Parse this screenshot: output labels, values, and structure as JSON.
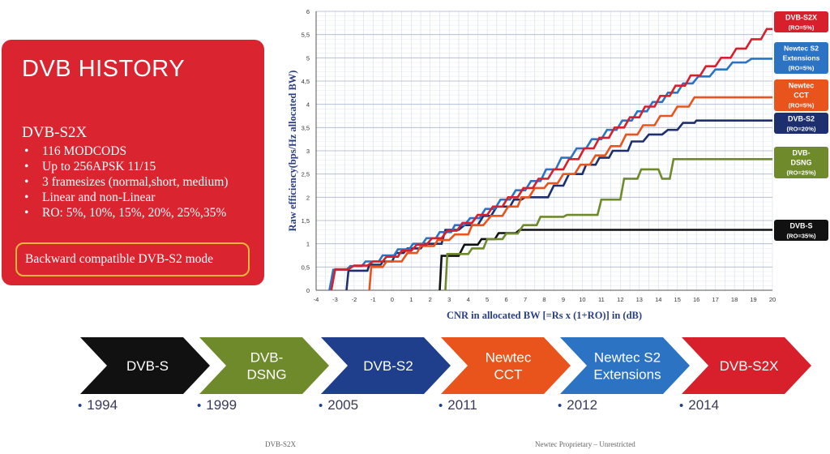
{
  "panel": {
    "title": "DVB HISTORY",
    "subtitle": "DVB-S2X",
    "bullets": [
      "116 MODCODS",
      "Up to 256APSK 11/15",
      "3 framesizes (normal,short, medium)",
      "Linear and non-Linear",
      "RO: 5%, 10%, 15%, 20%, 25%,35%"
    ],
    "compat": "Backward compatible DVB-S2 mode"
  },
  "chart_data": {
    "type": "line",
    "xlabel": "CNR in allocated BW [=Rs x (1+RO)] in (dB)",
    "ylabel": "Raw efficiency(bps/Hz allocated BW)",
    "xlim": [
      -4,
      20
    ],
    "ylim": [
      0,
      6
    ],
    "x_ticks": [
      "-4",
      "-3",
      "-2",
      "-1",
      "0",
      "1",
      "2",
      "3",
      "4",
      "5",
      "6",
      "7",
      "8",
      "9",
      "10",
      "11",
      "12",
      "13",
      "14",
      "15",
      "16",
      "17",
      "18",
      "19",
      "20"
    ],
    "y_ticks": [
      "0",
      "0,5",
      "1",
      "1,5",
      "2",
      "2,5",
      "3",
      "3,5",
      "4",
      "4,5",
      "5",
      "5,5",
      "6"
    ],
    "grid": true,
    "series": [
      {
        "name": "DVB-S (RO=35%)",
        "color": "#111111",
        "points": [
          [
            2.5,
            0
          ],
          [
            2.6,
            0.74
          ],
          [
            3.5,
            0.74
          ],
          [
            3.8,
            0.98
          ],
          [
            4.5,
            0.98
          ],
          [
            4.7,
            1.1
          ],
          [
            5.4,
            1.1
          ],
          [
            5.6,
            1.23
          ],
          [
            6.5,
            1.23
          ],
          [
            6.7,
            1.3
          ],
          [
            20,
            1.3
          ]
        ]
      },
      {
        "name": "DVB-DSNG (RO=25%)",
        "color": "#6f8a2a",
        "points": [
          [
            2.8,
            0
          ],
          [
            2.9,
            0.78
          ],
          [
            4.0,
            0.78
          ],
          [
            4.2,
            0.9
          ],
          [
            4.8,
            0.9
          ],
          [
            5.0,
            1.1
          ],
          [
            5.8,
            1.1
          ],
          [
            6.0,
            1.22
          ],
          [
            6.6,
            1.22
          ],
          [
            6.9,
            1.4
          ],
          [
            7.6,
            1.4
          ],
          [
            7.8,
            1.58
          ],
          [
            9.0,
            1.58
          ],
          [
            9.2,
            1.62
          ],
          [
            10.8,
            1.62
          ],
          [
            11.0,
            1.95
          ],
          [
            12.0,
            1.95
          ],
          [
            12.2,
            2.4
          ],
          [
            12.9,
            2.4
          ],
          [
            13.1,
            2.6
          ],
          [
            14.0,
            2.6
          ],
          [
            14.2,
            2.4
          ],
          [
            14.6,
            2.4
          ],
          [
            14.8,
            2.82
          ],
          [
            20,
            2.82
          ]
        ]
      },
      {
        "name": "DVB-S2 (RO=20%)",
        "color": "#1d2f6e",
        "points": [
          [
            -2.4,
            0
          ],
          [
            -2.3,
            0.42
          ],
          [
            -1.3,
            0.42
          ],
          [
            -1.2,
            0.55
          ],
          [
            -0.6,
            0.55
          ],
          [
            -0.5,
            0.62
          ],
          [
            0.0,
            0.62
          ],
          [
            0.2,
            0.8
          ],
          [
            0.6,
            0.8
          ],
          [
            0.8,
            0.9
          ],
          [
            1.5,
            0.9
          ],
          [
            1.7,
            1.0
          ],
          [
            2.6,
            1.0
          ],
          [
            2.8,
            1.3
          ],
          [
            3.5,
            1.3
          ],
          [
            3.8,
            1.4
          ],
          [
            4.5,
            1.4
          ],
          [
            4.8,
            1.6
          ],
          [
            5.2,
            1.6
          ],
          [
            5.5,
            1.8
          ],
          [
            6.2,
            1.8
          ],
          [
            6.4,
            1.95
          ],
          [
            6.8,
            1.95
          ],
          [
            7.0,
            2.0
          ],
          [
            8.2,
            2.0
          ],
          [
            8.5,
            2.25
          ],
          [
            9.0,
            2.25
          ],
          [
            9.3,
            2.5
          ],
          [
            10.0,
            2.5
          ],
          [
            10.2,
            2.7
          ],
          [
            10.7,
            2.7
          ],
          [
            10.9,
            2.85
          ],
          [
            11.4,
            2.85
          ],
          [
            11.6,
            3.0
          ],
          [
            12.4,
            3.0
          ],
          [
            12.6,
            3.2
          ],
          [
            13.2,
            3.2
          ],
          [
            13.5,
            3.35
          ],
          [
            14.2,
            3.35
          ],
          [
            14.5,
            3.45
          ],
          [
            15.0,
            3.45
          ],
          [
            15.3,
            3.6
          ],
          [
            15.9,
            3.6
          ],
          [
            16.0,
            3.65
          ],
          [
            20,
            3.65
          ]
        ]
      },
      {
        "name": "Newtec CCT (RO=5%)",
        "color": "#e8541c",
        "points": [
          [
            -1.2,
            0
          ],
          [
            -1.1,
            0.5
          ],
          [
            -0.5,
            0.5
          ],
          [
            -0.3,
            0.62
          ],
          [
            0.5,
            0.62
          ],
          [
            0.8,
            0.8
          ],
          [
            1.3,
            0.8
          ],
          [
            1.5,
            0.95
          ],
          [
            2.2,
            0.95
          ],
          [
            2.4,
            1.08
          ],
          [
            3.0,
            1.08
          ],
          [
            3.3,
            1.2
          ],
          [
            4.0,
            1.2
          ],
          [
            4.2,
            1.4
          ],
          [
            4.8,
            1.4
          ],
          [
            5.2,
            1.6
          ],
          [
            5.8,
            1.6
          ],
          [
            6.1,
            1.8
          ],
          [
            6.6,
            1.8
          ],
          [
            6.8,
            2.0
          ],
          [
            7.2,
            2.0
          ],
          [
            7.5,
            2.2
          ],
          [
            8.0,
            2.2
          ],
          [
            8.2,
            2.3
          ],
          [
            8.7,
            2.3
          ],
          [
            9.0,
            2.5
          ],
          [
            9.6,
            2.5
          ],
          [
            9.9,
            2.7
          ],
          [
            10.4,
            2.7
          ],
          [
            10.7,
            2.9
          ],
          [
            11.2,
            2.9
          ],
          [
            11.5,
            3.1
          ],
          [
            12.0,
            3.1
          ],
          [
            12.3,
            3.35
          ],
          [
            12.9,
            3.35
          ],
          [
            13.2,
            3.55
          ],
          [
            13.8,
            3.55
          ],
          [
            14.1,
            3.75
          ],
          [
            14.7,
            3.75
          ],
          [
            15.0,
            3.95
          ],
          [
            15.6,
            3.95
          ],
          [
            15.9,
            4.15
          ],
          [
            20,
            4.15
          ]
        ]
      },
      {
        "name": "Newtec S2 Extensions (RO=5%)",
        "color": "#2c73c4",
        "points": [
          [
            -3.3,
            0
          ],
          [
            -3.1,
            0.44
          ],
          [
            -2.4,
            0.44
          ],
          [
            -2.2,
            0.52
          ],
          [
            -1.6,
            0.52
          ],
          [
            -1.4,
            0.62
          ],
          [
            -0.7,
            0.62
          ],
          [
            -0.5,
            0.75
          ],
          [
            0.1,
            0.75
          ],
          [
            0.3,
            0.88
          ],
          [
            0.9,
            0.88
          ],
          [
            1.1,
            1.0
          ],
          [
            1.6,
            1.0
          ],
          [
            1.8,
            1.12
          ],
          [
            2.3,
            1.12
          ],
          [
            2.5,
            1.25
          ],
          [
            3.1,
            1.25
          ],
          [
            3.3,
            1.4
          ],
          [
            3.8,
            1.4
          ],
          [
            4.1,
            1.55
          ],
          [
            4.6,
            1.55
          ],
          [
            4.9,
            1.75
          ],
          [
            5.4,
            1.75
          ],
          [
            5.7,
            1.95
          ],
          [
            6.2,
            1.95
          ],
          [
            6.5,
            2.15
          ],
          [
            7.0,
            2.15
          ],
          [
            7.3,
            2.35
          ],
          [
            7.8,
            2.35
          ],
          [
            8.1,
            2.6
          ],
          [
            8.6,
            2.6
          ],
          [
            8.9,
            2.85
          ],
          [
            9.4,
            2.85
          ],
          [
            9.7,
            3.05
          ],
          [
            10.2,
            3.05
          ],
          [
            10.5,
            3.25
          ],
          [
            11.0,
            3.25
          ],
          [
            11.3,
            3.45
          ],
          [
            11.8,
            3.45
          ],
          [
            12.1,
            3.65
          ],
          [
            12.6,
            3.65
          ],
          [
            12.9,
            3.85
          ],
          [
            13.4,
            3.85
          ],
          [
            13.7,
            4.05
          ],
          [
            14.2,
            4.05
          ],
          [
            14.5,
            4.25
          ],
          [
            15.0,
            4.25
          ],
          [
            15.3,
            4.45
          ],
          [
            15.8,
            4.45
          ],
          [
            16.1,
            4.6
          ],
          [
            16.7,
            4.6
          ],
          [
            17.0,
            4.75
          ],
          [
            17.6,
            4.75
          ],
          [
            17.9,
            4.9
          ],
          [
            18.6,
            4.9
          ],
          [
            18.9,
            4.98
          ],
          [
            20,
            4.98
          ]
        ]
      },
      {
        "name": "DVB-S2X (RO=5%)",
        "color": "#d7202b",
        "points": [
          [
            -3.2,
            0
          ],
          [
            -3.0,
            0.45
          ],
          [
            -2.3,
            0.45
          ],
          [
            -2.0,
            0.53
          ],
          [
            -1.3,
            0.53
          ],
          [
            -1.0,
            0.62
          ],
          [
            -0.5,
            0.62
          ],
          [
            -0.3,
            0.72
          ],
          [
            0.3,
            0.72
          ],
          [
            0.5,
            0.85
          ],
          [
            1.0,
            0.85
          ],
          [
            1.3,
            0.98
          ],
          [
            1.8,
            0.98
          ],
          [
            2.1,
            1.12
          ],
          [
            2.6,
            1.12
          ],
          [
            2.9,
            1.28
          ],
          [
            3.4,
            1.28
          ],
          [
            3.7,
            1.45
          ],
          [
            4.2,
            1.45
          ],
          [
            4.5,
            1.62
          ],
          [
            5.0,
            1.62
          ],
          [
            5.3,
            1.8
          ],
          [
            5.8,
            1.8
          ],
          [
            6.1,
            2.0
          ],
          [
            6.6,
            2.0
          ],
          [
            6.9,
            2.2
          ],
          [
            7.4,
            2.2
          ],
          [
            7.7,
            2.4
          ],
          [
            8.2,
            2.4
          ],
          [
            8.5,
            2.6
          ],
          [
            9.0,
            2.6
          ],
          [
            9.3,
            2.82
          ],
          [
            9.8,
            2.82
          ],
          [
            10.1,
            3.05
          ],
          [
            10.6,
            3.05
          ],
          [
            10.9,
            3.28
          ],
          [
            11.4,
            3.28
          ],
          [
            11.7,
            3.5
          ],
          [
            12.2,
            3.5
          ],
          [
            12.5,
            3.72
          ],
          [
            13.0,
            3.72
          ],
          [
            13.3,
            3.95
          ],
          [
            13.8,
            3.95
          ],
          [
            14.1,
            4.18
          ],
          [
            14.6,
            4.18
          ],
          [
            14.9,
            4.4
          ],
          [
            15.4,
            4.4
          ],
          [
            15.7,
            4.62
          ],
          [
            16.2,
            4.62
          ],
          [
            16.5,
            4.82
          ],
          [
            17.0,
            4.82
          ],
          [
            17.3,
            5.0
          ],
          [
            17.8,
            5.0
          ],
          [
            18.1,
            5.2
          ],
          [
            18.6,
            5.2
          ],
          [
            18.9,
            5.4
          ],
          [
            19.4,
            5.4
          ],
          [
            19.7,
            5.62
          ],
          [
            20,
            5.62
          ]
        ]
      }
    ],
    "legend": [
      {
        "lines": [
          "DVB-S2X",
          "(RO=5%)"
        ],
        "color": "#d7202b",
        "value": 5.62
      },
      {
        "lines": [
          "Newtec S2",
          "Extensions",
          "(RO=5%)"
        ],
        "color": "#2c73c4",
        "value": 4.98
      },
      {
        "lines": [
          "Newtec",
          "CCT",
          "(RO=5%)"
        ],
        "color": "#e8541c",
        "value": 4.15
      },
      {
        "lines": [
          "DVB-S2",
          "(RO=20%)"
        ],
        "color": "#1d2f6e",
        "value": 3.65
      },
      {
        "lines": [
          "DVB-",
          "DSNG",
          "(RO=25%)"
        ],
        "color": "#6f8a2a",
        "value": 2.82
      },
      {
        "lines": [
          "DVB-S",
          "(RO=35%)"
        ],
        "color": "#111111",
        "value": 1.3
      }
    ]
  },
  "timeline": [
    {
      "lines": [
        "DVB-S"
      ],
      "year": "1994",
      "color": "#111111"
    },
    {
      "lines": [
        "DVB-",
        "DSNG"
      ],
      "year": "1999",
      "color": "#6f8a2a"
    },
    {
      "lines": [
        "DVB-S2"
      ],
      "year": "2005",
      "color": "#1f3f8c"
    },
    {
      "lines": [
        "Newtec",
        "CCT"
      ],
      "year": "2011",
      "color": "#e8541c"
    },
    {
      "lines": [
        "Newtec S2",
        "Extensions"
      ],
      "year": "2012",
      "color": "#2c73c4"
    },
    {
      "lines": [
        "DVB-S2X"
      ],
      "year": "2014",
      "color": "#d7202b"
    }
  ],
  "footer": {
    "left": "DVB-S2X",
    "right": "Newtec Proprietary – Unrestricted"
  }
}
